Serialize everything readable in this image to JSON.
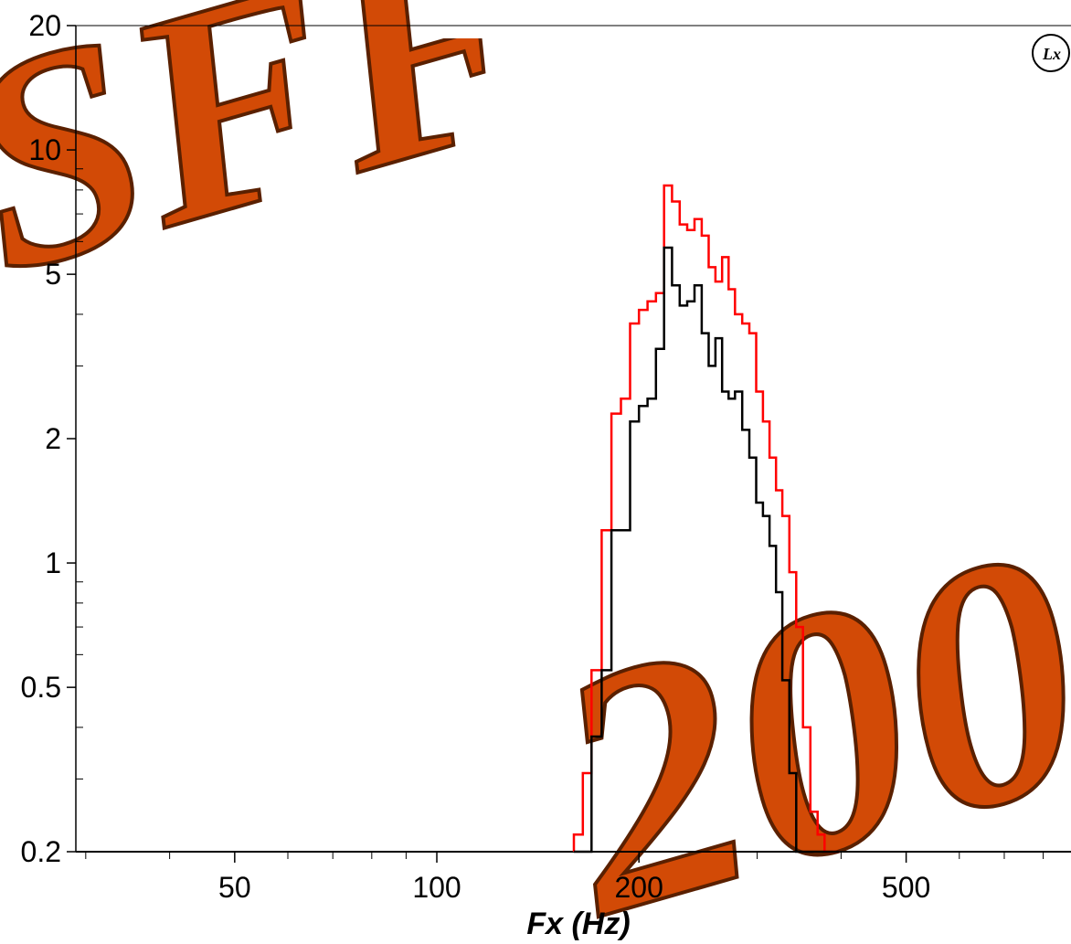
{
  "watermark": {
    "text_top": "SFF",
    "text_bottom": "200"
  },
  "logo": {
    "text": "Lx"
  },
  "chart_data": {
    "type": "line",
    "step": true,
    "xscale": "log",
    "yscale": "log",
    "xlabel": "Fx (Hz)",
    "ylabel": "",
    "xlim": [
      29,
      880
    ],
    "ylim": [
      0.2,
      20
    ],
    "xticks": [
      50,
      100,
      200,
      500
    ],
    "yticks": [
      0.2,
      0.5,
      1,
      2,
      5,
      10,
      20
    ],
    "ytick_labels": [
      "0.2",
      "0.5",
      "1",
      "2",
      "5",
      "10",
      "20"
    ],
    "xtick_labels": [
      "50",
      "100",
      "200",
      "500"
    ],
    "grid": false,
    "bin_edges": [
      160,
      165,
      170,
      176,
      182,
      188,
      194,
      200,
      206,
      212,
      218,
      224,
      230,
      236,
      242,
      248,
      254,
      260,
      266,
      272,
      278,
      285,
      292,
      299,
      306,
      313,
      320,
      327,
      335,
      343,
      351,
      360,
      369,
      378,
      388,
      398
    ],
    "series": [
      {
        "color": "#ff0000",
        "values": [
          0.22,
          0.31,
          0.55,
          1.2,
          2.3,
          2.5,
          3.8,
          4.1,
          4.3,
          4.5,
          8.2,
          7.5,
          6.6,
          6.4,
          6.8,
          6.2,
          5.2,
          4.8,
          5.5,
          4.6,
          4.0,
          3.8,
          3.6,
          2.6,
          2.2,
          1.8,
          1.5,
          1.3,
          0.95,
          0.7,
          0.4,
          0.25,
          0.22,
          0.2,
          0.2
        ]
      },
      {
        "color": "#000000",
        "values": [
          0.2,
          0.2,
          0.38,
          0.55,
          1.2,
          1.2,
          2.2,
          2.4,
          2.5,
          3.3,
          5.8,
          4.7,
          4.2,
          4.3,
          4.7,
          3.6,
          3.0,
          3.5,
          2.6,
          2.5,
          2.6,
          2.1,
          1.8,
          1.4,
          1.3,
          1.1,
          0.85,
          0.52,
          0.31,
          0.2,
          0.2,
          0.2,
          0.2,
          0.2,
          0.2
        ]
      }
    ]
  }
}
